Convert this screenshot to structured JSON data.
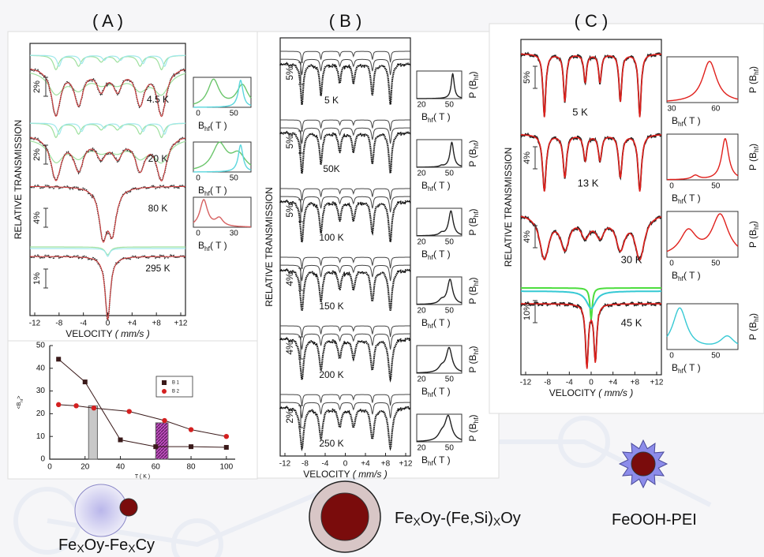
{
  "panels": [
    {
      "label": "( A )",
      "y_axis_label": "RELATIVE TRANSMISSION",
      "x_axis_label": {
        "main": "VELOCITY ",
        "unit": "( mm/s )"
      },
      "xticks": [
        "-12",
        "-8",
        "-4",
        "0",
        "+4",
        "+8",
        "+12"
      ],
      "spectra": [
        {
          "temperature": "4.5 K",
          "scale": "2%",
          "dist_ticks": [
            "0",
            "50"
          ]
        },
        {
          "temperature": "20 K",
          "scale": "2%",
          "dist_ticks": [
            "0",
            "50"
          ]
        },
        {
          "temperature": "80 K",
          "scale": "4%",
          "dist_ticks": [
            "0",
            "30"
          ]
        },
        {
          "temperature": "295 K",
          "scale": "1%"
        }
      ]
    },
    {
      "label": "( B )",
      "y_axis_label": "RELATIVE TRANSMISSION",
      "x_axis_label": {
        "main": "VELOCITY ",
        "unit": "( mm/s )"
      },
      "xticks": [
        "-12",
        "-8",
        "-4",
        "0",
        "+4",
        "+8",
        "+12"
      ],
      "spectra": [
        {
          "temperature": "5 K",
          "scale": "5%",
          "dist_ticks": [
            "20",
            "50"
          ]
        },
        {
          "temperature": "50K",
          "scale": "5%",
          "dist_ticks": [
            "20",
            "50"
          ]
        },
        {
          "temperature": "100 K",
          "scale": "5%",
          "dist_ticks": [
            "20",
            "50"
          ]
        },
        {
          "temperature": "150 K",
          "scale": "4%",
          "dist_ticks": [
            "20",
            "50"
          ]
        },
        {
          "temperature": "200 K",
          "scale": "4%",
          "dist_ticks": [
            "20",
            "50"
          ]
        },
        {
          "temperature": "250 K",
          "scale": "2%",
          "dist_ticks": [
            "20",
            "50"
          ]
        }
      ]
    },
    {
      "label": "( C )",
      "y_axis_label": "RELATIVE TRANSMISSION",
      "x_axis_label": {
        "main": "VELOCITY ",
        "unit": "( mm/s )"
      },
      "xticks": [
        "-12",
        "-8",
        "-4",
        "0",
        "+4",
        "+8",
        "+12"
      ],
      "spectra": [
        {
          "temperature": "5 K",
          "scale": "5%",
          "dist_ticks": [
            "30",
            "60"
          ]
        },
        {
          "temperature": "13 K",
          "scale": "4%",
          "dist_ticks": [
            "0",
            "50"
          ]
        },
        {
          "temperature": "30 K",
          "scale": "4%",
          "dist_ticks": [
            "0",
            "50"
          ]
        },
        {
          "temperature": "45 K",
          "scale": "10%",
          "dist_ticks": [
            "0",
            "50"
          ]
        }
      ]
    }
  ],
  "bhf_label": {
    "main": "B",
    "sub": "hf",
    "unit": "( T )"
  },
  "p_label": {
    "main": "P (B",
    "sub": "hf",
    "end": ")"
  },
  "chart_data": {
    "type": "line",
    "x_label": "T ( K )",
    "y_label": {
      "main": "<B",
      "sub": "hf",
      "end": ">"
    },
    "xlim": [
      0,
      105
    ],
    "xticks": [
      0,
      20,
      40,
      60,
      80,
      100
    ],
    "ylim": [
      0,
      50
    ],
    "yticks": [
      0,
      10,
      20,
      30,
      40,
      50
    ],
    "series": [
      {
        "name": "B 1",
        "color": "#3a1a1a",
        "marker": "square",
        "x": [
          5,
          20,
          40,
          60,
          80,
          100
        ],
        "values": [
          44,
          34,
          8.5,
          5.5,
          5.5,
          5.2
        ]
      },
      {
        "name": "B 2",
        "color": "#d42020",
        "marker": "circle",
        "x": [
          5,
          15,
          25,
          45,
          65,
          80,
          100
        ],
        "values": [
          24,
          23.5,
          22.5,
          21,
          17,
          13,
          10
        ]
      }
    ]
  },
  "particles": [
    {
      "label": [
        "Fe",
        "X",
        "Oy-Fe",
        "X",
        "Cy"
      ]
    },
    {
      "label": [
        "Fe",
        "X",
        "Oy-(Fe,Si)",
        "X",
        "Oy"
      ]
    },
    {
      "label": [
        "FeOOH-PEI"
      ]
    }
  ]
}
